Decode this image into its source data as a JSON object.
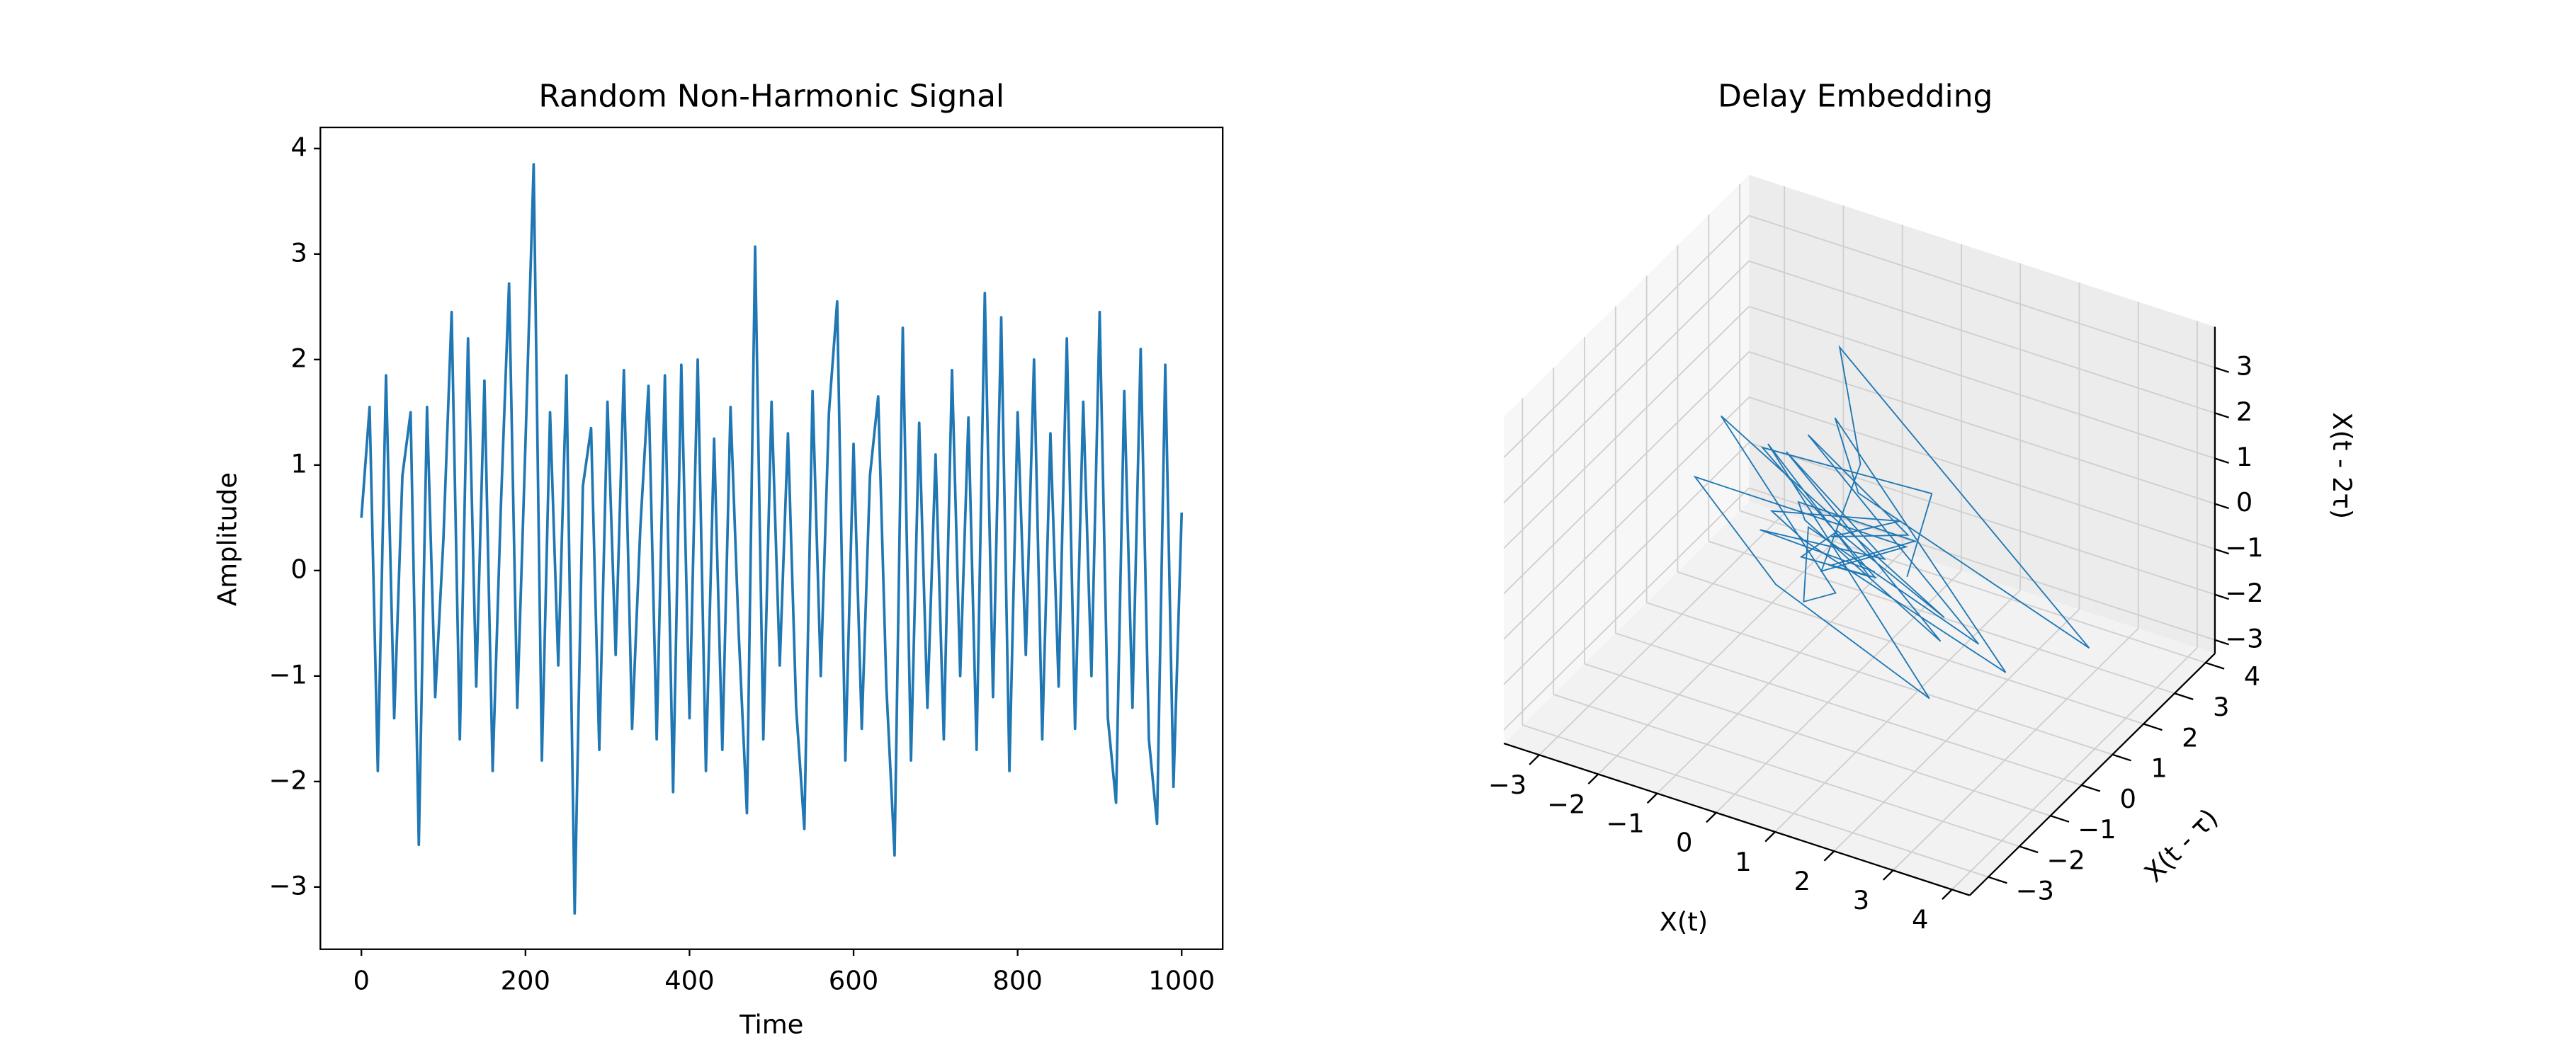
{
  "chart_data": [
    {
      "type": "line",
      "title": "Random Non-Harmonic Signal",
      "xlabel": "Time",
      "ylabel": "Amplitude",
      "color": "#1f77b4",
      "x": [
        0,
        10,
        20,
        30,
        40,
        50,
        60,
        70,
        80,
        90,
        100,
        110,
        120,
        130,
        140,
        150,
        160,
        170,
        180,
        190,
        200,
        210,
        220,
        230,
        240,
        250,
        260,
        270,
        280,
        290,
        300,
        310,
        320,
        330,
        340,
        350,
        360,
        370,
        380,
        390,
        400,
        410,
        420,
        430,
        440,
        450,
        460,
        470,
        480,
        490,
        500,
        510,
        520,
        530,
        540,
        550,
        560,
        570,
        580,
        590,
        600,
        610,
        620,
        630,
        640,
        650,
        660,
        670,
        680,
        690,
        700,
        710,
        720,
        730,
        740,
        750,
        760,
        770,
        780,
        790,
        800,
        810,
        820,
        830,
        840,
        850,
        860,
        870,
        880,
        890,
        900,
        910,
        920,
        930,
        940,
        950,
        960,
        970,
        980,
        990,
        1000
      ],
      "values": [
        0.5,
        1.55,
        -1.9,
        1.85,
        -1.4,
        0.9,
        1.5,
        -2.6,
        1.55,
        -1.2,
        0.3,
        2.45,
        -1.6,
        2.2,
        -1.1,
        1.8,
        -1.9,
        0.6,
        2.72,
        -1.3,
        1.2,
        3.85,
        -1.8,
        1.5,
        -0.9,
        1.85,
        -3.25,
        0.8,
        1.35,
        -1.7,
        1.6,
        -0.8,
        1.9,
        -1.5,
        0.4,
        1.75,
        -1.6,
        1.85,
        -2.1,
        1.95,
        -1.4,
        2.0,
        -1.9,
        1.25,
        -1.7,
        1.55,
        -0.6,
        -2.3,
        3.07,
        -1.6,
        1.6,
        -0.9,
        1.3,
        -1.3,
        -2.45,
        1.7,
        -1.0,
        1.5,
        2.55,
        -1.8,
        1.2,
        -1.5,
        0.9,
        1.65,
        -1.1,
        -2.7,
        2.3,
        -1.8,
        1.4,
        -1.3,
        1.1,
        -1.6,
        1.9,
        -1.0,
        1.45,
        -1.7,
        2.63,
        -1.2,
        2.4,
        -1.9,
        1.5,
        -0.8,
        2.0,
        -1.6,
        1.3,
        -1.1,
        2.2,
        -1.5,
        1.6,
        -1.0,
        2.45,
        -1.4,
        -2.2,
        1.7,
        -1.3,
        2.1,
        -1.6,
        -2.4,
        1.95,
        -2.05,
        0.55
      ],
      "xlim": [
        -50,
        1050
      ],
      "ylim": [
        -3.59,
        4.2
      ],
      "xticks": [
        0,
        200,
        400,
        600,
        800,
        1000
      ],
      "yticks": [
        {
          "value": -3,
          "label": "−3"
        },
        {
          "value": -2,
          "label": "−2"
        },
        {
          "value": -1,
          "label": "−1"
        },
        0,
        1,
        2,
        3,
        4
      ]
    },
    {
      "type": "line3d",
      "title": "Delay Embedding",
      "xlabel": "X(t)",
      "ylabel": "X(t - τ)",
      "zlabel": "X(t - 2τ)",
      "color": "#1f77b4",
      "x": [
        0.5,
        1.5,
        -1.9,
        1.8,
        -1.4,
        0.9,
        1.5,
        -2.6,
        1.5,
        -1.2,
        0.3,
        2.4,
        -1.6,
        2.2,
        -1.1,
        1.8,
        -1.9,
        0.6,
        2.7,
        -1.3,
        1.2,
        3.8,
        -1.8,
        1.5,
        -0.9,
        1.8,
        -3.2,
        0.8,
        1.3,
        -1.7,
        1.6,
        -0.8,
        1.9,
        -1.5,
        0.4,
        1.7,
        -1.6,
        1.8,
        -2.1,
        1.9
      ],
      "y": [
        1.6,
        0.5,
        1.5,
        -1.9,
        1.8,
        -1.4,
        0.9,
        1.5,
        -2.6,
        1.5,
        -1.2,
        0.3,
        2.4,
        -1.6,
        2.2,
        -1.1,
        1.8,
        -1.9,
        0.6,
        2.7,
        -1.3,
        1.2,
        3.8,
        -1.8,
        1.5,
        -0.9,
        1.8,
        -3.2,
        0.8,
        1.3,
        -1.7,
        1.6,
        -0.8,
        1.9,
        -1.5,
        0.4,
        1.7,
        -1.6,
        1.8,
        -2.1
      ],
      "z": [
        -1.4,
        1.6,
        0.5,
        1.5,
        -1.9,
        1.8,
        -1.4,
        0.9,
        1.5,
        -2.6,
        1.5,
        -1.2,
        0.3,
        2.4,
        -1.6,
        2.2,
        -1.1,
        1.8,
        -1.9,
        0.6,
        2.7,
        -1.3,
        1.2,
        3.8,
        -1.8,
        1.5,
        -0.9,
        1.8,
        -3.2,
        0.8,
        1.3,
        -1.7,
        1.6,
        -0.8,
        1.9,
        -1.5,
        0.4,
        1.7,
        -1.6,
        1.8
      ],
      "xlim": [
        -3.6,
        4.3
      ],
      "ylim": [
        -3.6,
        4.3
      ],
      "zlim": [
        -3.3,
        3.9
      ],
      "xticks": [
        {
          "value": -3,
          "label": "−3"
        },
        {
          "value": -2,
          "label": "−2"
        },
        {
          "value": -1,
          "label": "−1"
        },
        0,
        1,
        2,
        3,
        4
      ],
      "yticks": [
        {
          "value": -3,
          "label": "−3"
        },
        {
          "value": -2,
          "label": "−2"
        },
        {
          "value": -1,
          "label": "−1"
        },
        0,
        1,
        2,
        3,
        4
      ],
      "zticks": [
        {
          "value": -3,
          "label": "−3"
        },
        {
          "value": -2,
          "label": "−2"
        },
        {
          "value": -1,
          "label": "−1"
        },
        0,
        1,
        2,
        3
      ]
    }
  ]
}
